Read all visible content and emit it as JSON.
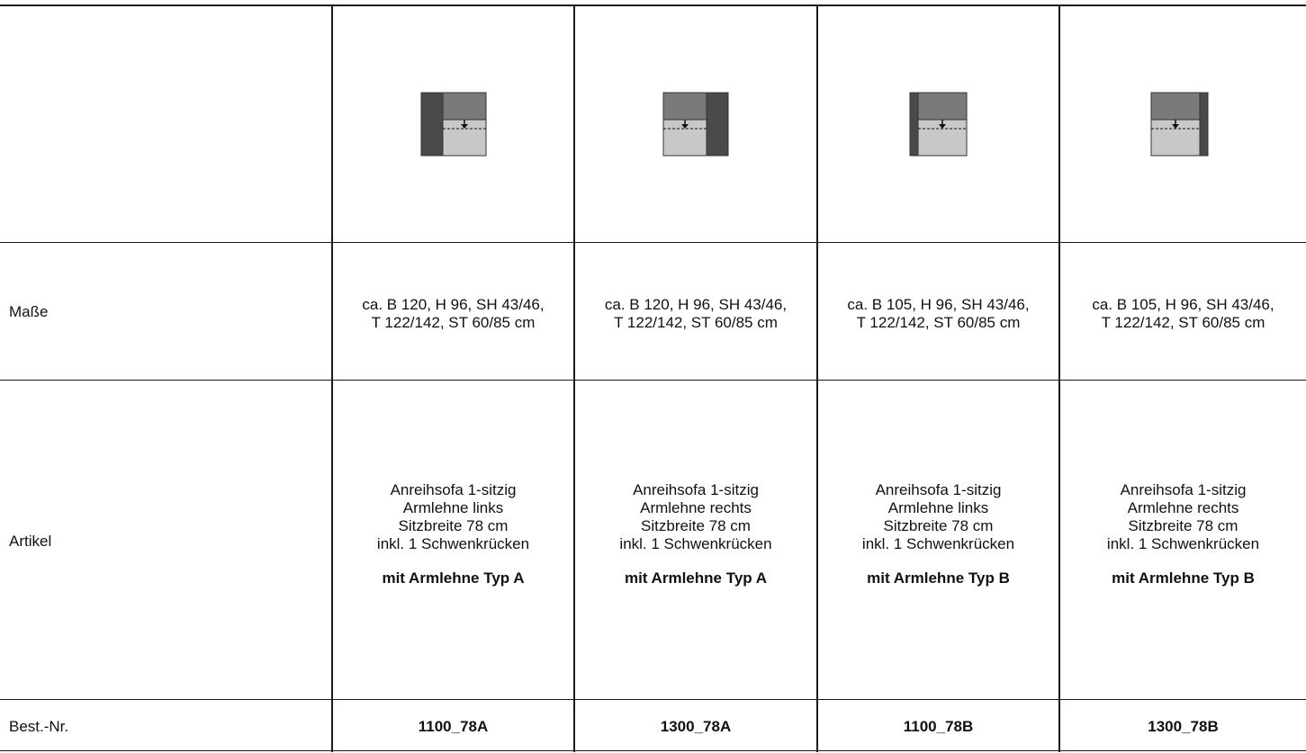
{
  "rows": {
    "masse_label": "Maße",
    "artikel_label": "Artikel",
    "bestnr_label": "Best.-Nr."
  },
  "columns": [
    {
      "icon": "sofa-module-armrest-left-wide-icon",
      "masse_line1": "ca. B 120, H 96, SH 43/46,",
      "masse_line2": "T 122/142, ST 60/85 cm",
      "artikel_line1": "Anreihsofa 1-sitzig",
      "artikel_line2": "Armlehne links",
      "artikel_line3": "Sitzbreite 78 cm",
      "artikel_line4": "inkl. 1 Schwenkrücken",
      "armlehne": "mit Armlehne Typ A",
      "bestnr": "1100_78A"
    },
    {
      "icon": "sofa-module-armrest-right-wide-icon",
      "masse_line1": "ca. B 120, H 96, SH 43/46,",
      "masse_line2": "T 122/142, ST 60/85 cm",
      "artikel_line1": "Anreihsofa 1-sitzig",
      "artikel_line2": "Armlehne rechts",
      "artikel_line3": "Sitzbreite 78 cm",
      "artikel_line4": "inkl. 1 Schwenkrücken",
      "armlehne": "mit Armlehne Typ A",
      "bestnr": "1300_78A"
    },
    {
      "icon": "sofa-module-armrest-left-narrow-icon",
      "masse_line1": "ca. B 105, H 96, SH 43/46,",
      "masse_line2": "T 122/142, ST 60/85 cm",
      "artikel_line1": "Anreihsofa 1-sitzig",
      "artikel_line2": "Armlehne links",
      "artikel_line3": "Sitzbreite 78 cm",
      "artikel_line4": "inkl. 1 Schwenkrücken",
      "armlehne": "mit Armlehne Typ B",
      "bestnr": "1100_78B"
    },
    {
      "icon": "sofa-module-armrest-right-narrow-icon",
      "masse_line1": "ca. B 105, H 96, SH 43/46,",
      "masse_line2": "T 122/142, ST 60/85 cm",
      "artikel_line1": "Anreihsofa 1-sitzig",
      "artikel_line2": "Armlehne rechts",
      "artikel_line3": "Sitzbreite 78 cm",
      "artikel_line4": "inkl. 1 Schwenkrücken",
      "armlehne": "mit Armlehne Typ B",
      "bestnr": "1300_78B"
    }
  ],
  "colors": {
    "line": "#1a1a1a",
    "backrest": "#7a7a7a",
    "seat": "#c8c8c8",
    "armrest": "#4a4a4a"
  }
}
